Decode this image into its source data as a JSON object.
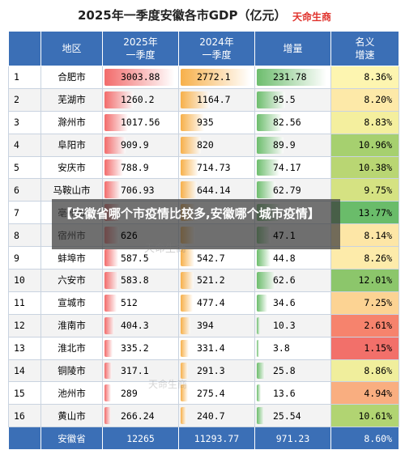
{
  "title": "2025年一季度安徽各市GDP（亿元）",
  "brand": "天命生商",
  "headers": [
    "",
    "地区",
    "2025年\n一季度",
    "2024年\n一季度",
    "增量",
    "名义\n增速"
  ],
  "rows": [
    {
      "rank": "1",
      "city": "合肥市",
      "gdp2025": "3003.88",
      "gdp2024": "2772.1",
      "inc": "231.78",
      "rate": "8.36%",
      "rate_color": "#fdf5b0"
    },
    {
      "rank": "2",
      "city": "芜湖市",
      "gdp2025": "1260.2",
      "gdp2024": "1164.7",
      "inc": "95.5",
      "rate": "8.20%",
      "rate_color": "#fde9a8"
    },
    {
      "rank": "3",
      "city": "滁州市",
      "gdp2025": "1017.56",
      "gdp2024": "935",
      "inc": "82.56",
      "rate": "8.83%",
      "rate_color": "#f4ef9e"
    },
    {
      "rank": "4",
      "city": "阜阳市",
      "gdp2025": "909.9",
      "gdp2024": "820",
      "inc": "89.9",
      "rate": "10.96%",
      "rate_color": "#a6d06f"
    },
    {
      "rank": "5",
      "city": "安庆市",
      "gdp2025": "788.9",
      "gdp2024": "714.73",
      "inc": "74.17",
      "rate": "10.38%",
      "rate_color": "#b9d673"
    },
    {
      "rank": "6",
      "city": "马鞍山市",
      "gdp2025": "706.93",
      "gdp2024": "644.14",
      "inc": "62.79",
      "rate": "9.75%",
      "rate_color": "#d5e282"
    },
    {
      "rank": "7",
      "city": "亳州市",
      "gdp2025": "",
      "gdp2024": "",
      "inc": "",
      "rate": "13.77%",
      "rate_color": "#6abc6a"
    },
    {
      "rank": "8",
      "city": "宿州市",
      "gdp2025": "626",
      "gdp2024": "",
      "inc": "47.1",
      "rate": "8.14%",
      "rate_color": "#fde6a6"
    },
    {
      "rank": "9",
      "city": "蚌埠市",
      "gdp2025": "587.5",
      "gdp2024": "542.7",
      "inc": "44.8",
      "rate": "8.26%",
      "rate_color": "#fdebaa"
    },
    {
      "rank": "10",
      "city": "六安市",
      "gdp2025": "583.8",
      "gdp2024": "521.2",
      "inc": "62.6",
      "rate": "12.01%",
      "rate_color": "#8cc66b"
    },
    {
      "rank": "11",
      "city": "宣城市",
      "gdp2025": "512",
      "gdp2024": "477.4",
      "inc": "34.6",
      "rate": "7.25%",
      "rate_color": "#fcd393"
    },
    {
      "rank": "12",
      "city": "淮南市",
      "gdp2025": "404.3",
      "gdp2024": "394",
      "inc": "10.3",
      "rate": "2.61%",
      "rate_color": "#f6836d"
    },
    {
      "rank": "13",
      "city": "淮北市",
      "gdp2025": "335.2",
      "gdp2024": "331.4",
      "inc": "3.8",
      "rate": "1.15%",
      "rate_color": "#f2706a"
    },
    {
      "rank": "14",
      "city": "铜陵市",
      "gdp2025": "317.1",
      "gdp2024": "291.3",
      "inc": "25.8",
      "rate": "8.86%",
      "rate_color": "#f0ee9c"
    },
    {
      "rank": "15",
      "city": "池州市",
      "gdp2025": "289",
      "gdp2024": "275.4",
      "inc": "13.6",
      "rate": "4.94%",
      "rate_color": "#f9ae80"
    },
    {
      "rank": "16",
      "city": "黄山市",
      "gdp2025": "266.24",
      "gdp2024": "240.7",
      "inc": "25.54",
      "rate": "10.61%",
      "rate_color": "#b1d472"
    }
  ],
  "total": {
    "city": "安徽省",
    "gdp2025": "12265",
    "gdp2024": "11293.77",
    "inc": "971.23",
    "rate": "8.60%"
  },
  "max": {
    "gdp2025": 3003.88,
    "gdp2024": 2772.1,
    "inc": 231.78
  },
  "bars_known": {
    "gdp2025": [
      3003.88,
      1260.2,
      1017.56,
      909.9,
      788.9,
      706.93,
      670,
      626,
      587.5,
      583.8,
      512,
      404.3,
      335.2,
      317.1,
      289,
      266.24
    ],
    "gdp2024": [
      2772.1,
      1164.7,
      935,
      820,
      714.73,
      644.14,
      590,
      580,
      542.7,
      521.2,
      477.4,
      394,
      331.4,
      291.3,
      275.4,
      240.7
    ],
    "inc": [
      231.78,
      95.5,
      82.56,
      89.9,
      74.17,
      62.79,
      80,
      47.1,
      44.8,
      62.6,
      34.6,
      10.3,
      3.8,
      25.8,
      13.6,
      25.54
    ]
  },
  "overlay": "【安徽省哪个市疫情比较多,安徽哪个城市疫情】",
  "watermark": "天命生商",
  "colors": {
    "header": "#3b6fb6",
    "bar2025": "#f26b6b",
    "bar2024": "#f7b04a",
    "barinc": "#6dbd6d"
  }
}
